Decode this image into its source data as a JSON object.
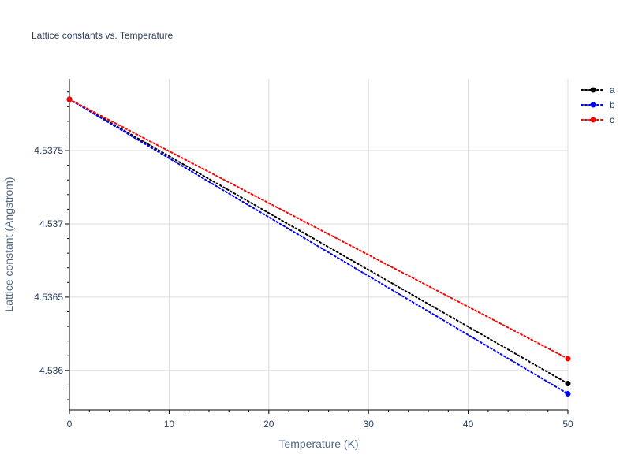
{
  "chart_data": {
    "type": "line",
    "title": "Lattice constants vs. Temperature",
    "xlabel": "Temperature (K)",
    "ylabel": "Lattice constant (Angstrom)",
    "xlim": [
      0,
      50
    ],
    "ylim": [
      4.53573,
      4.53799
    ],
    "x_ticks": [
      0,
      10,
      20,
      30,
      40,
      50
    ],
    "x_tick_labels": [
      "0",
      "10",
      "20",
      "30",
      "40",
      "50"
    ],
    "y_ticks": [
      4.536,
      4.5365,
      4.537,
      4.5375
    ],
    "y_tick_labels": [
      "4.536",
      "4.5365",
      "4.537",
      "4.5375"
    ],
    "grid": true,
    "legend_position": "top-right",
    "line_style": "dotted",
    "markers": true,
    "series": [
      {
        "name": "a",
        "color": "#000000",
        "x": [
          0,
          50
        ],
        "y": [
          4.53785,
          4.53591
        ]
      },
      {
        "name": "b",
        "color": "#0000ff",
        "x": [
          0,
          50
        ],
        "y": [
          4.53785,
          4.53584
        ]
      },
      {
        "name": "c",
        "color": "#ff0000",
        "x": [
          0,
          50
        ],
        "y": [
          4.53785,
          4.53608
        ]
      }
    ]
  }
}
